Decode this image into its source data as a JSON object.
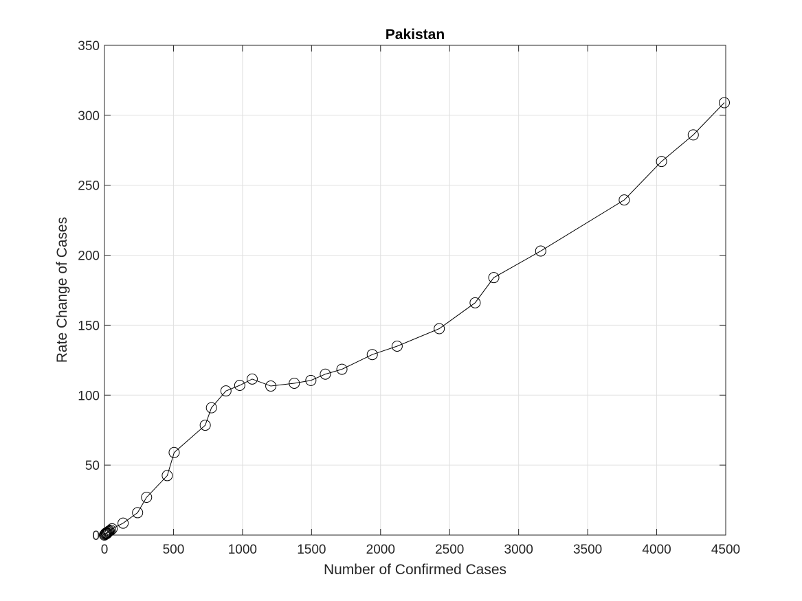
{
  "chart_data": {
    "type": "scatter",
    "title": "Pakistan",
    "xlabel": "Number of Confirmed Cases",
    "ylabel": "Rate Change of Cases",
    "xlim": [
      0,
      4500
    ],
    "ylim": [
      0,
      350
    ],
    "xticks": [
      0,
      500,
      1000,
      1500,
      2000,
      2500,
      3000,
      3500,
      4000,
      4500
    ],
    "yticks": [
      0,
      50,
      100,
      150,
      200,
      250,
      300,
      350
    ],
    "grid": true,
    "marker": "open-circle",
    "line": true,
    "colors": {
      "series": "#000000",
      "grid": "#e0e0e0",
      "axis": "#262626"
    },
    "series": [
      {
        "x": [
          0,
          4,
          8,
          12,
          16,
          20,
          25,
          30,
          35,
          45,
          55,
          135,
          240,
          305,
          455,
          505,
          730,
          775,
          880,
          980,
          1070,
          1205,
          1375,
          1495,
          1600,
          1720,
          1940,
          2120,
          2425,
          2685,
          2820,
          3160,
          3765,
          4035,
          4265,
          4490
        ],
        "y": [
          0,
          0.5,
          1,
          1.5,
          1,
          1.5,
          2,
          2.5,
          3,
          3.5,
          4.5,
          8.5,
          16,
          27,
          42.5,
          59,
          78.5,
          91,
          103,
          107,
          111.5,
          106.5,
          108.5,
          110.5,
          115,
          118.5,
          129,
          135,
          147.5,
          166,
          184,
          203,
          239.5,
          267,
          286,
          309
        ]
      }
    ]
  }
}
